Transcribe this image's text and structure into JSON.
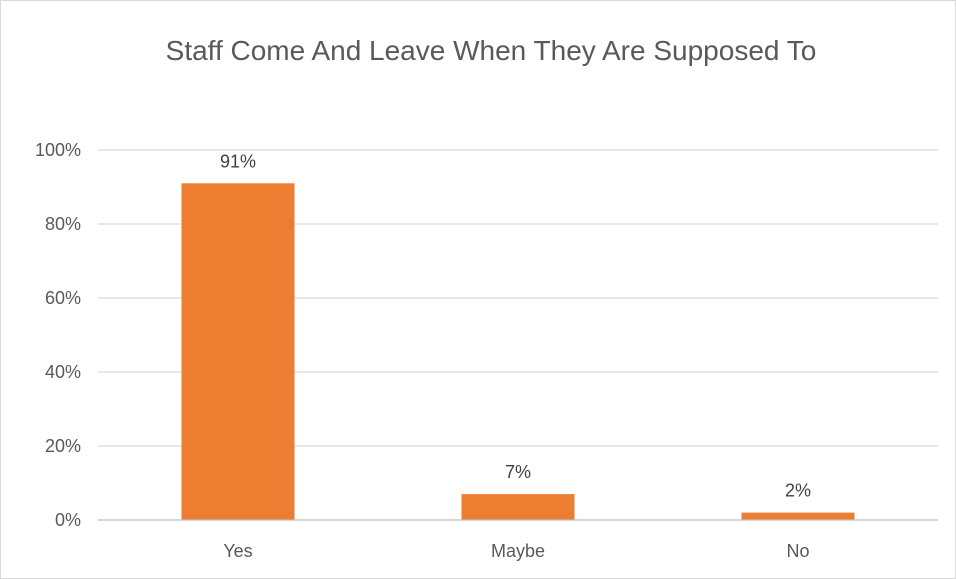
{
  "chart_data": {
    "type": "bar",
    "title": "Staff Come And Leave When They Are Supposed To",
    "xlabel": "",
    "ylabel": "",
    "categories": [
      "Yes",
      "Maybe",
      "No"
    ],
    "series": [
      {
        "values": [
          91,
          7,
          2
        ],
        "data_labels": [
          "91%",
          "7%",
          "2%"
        ],
        "color": "#ED7D31"
      }
    ],
    "ylim": [
      0,
      100
    ],
    "yticks": [
      0,
      20,
      40,
      60,
      80,
      100
    ],
    "ytick_labels": [
      "0%",
      "20%",
      "40%",
      "60%",
      "80%",
      "100%"
    ],
    "grid": true,
    "legend": "none",
    "gridline_color": "#d9d9d9",
    "axis_color": "#bfbfbf"
  }
}
